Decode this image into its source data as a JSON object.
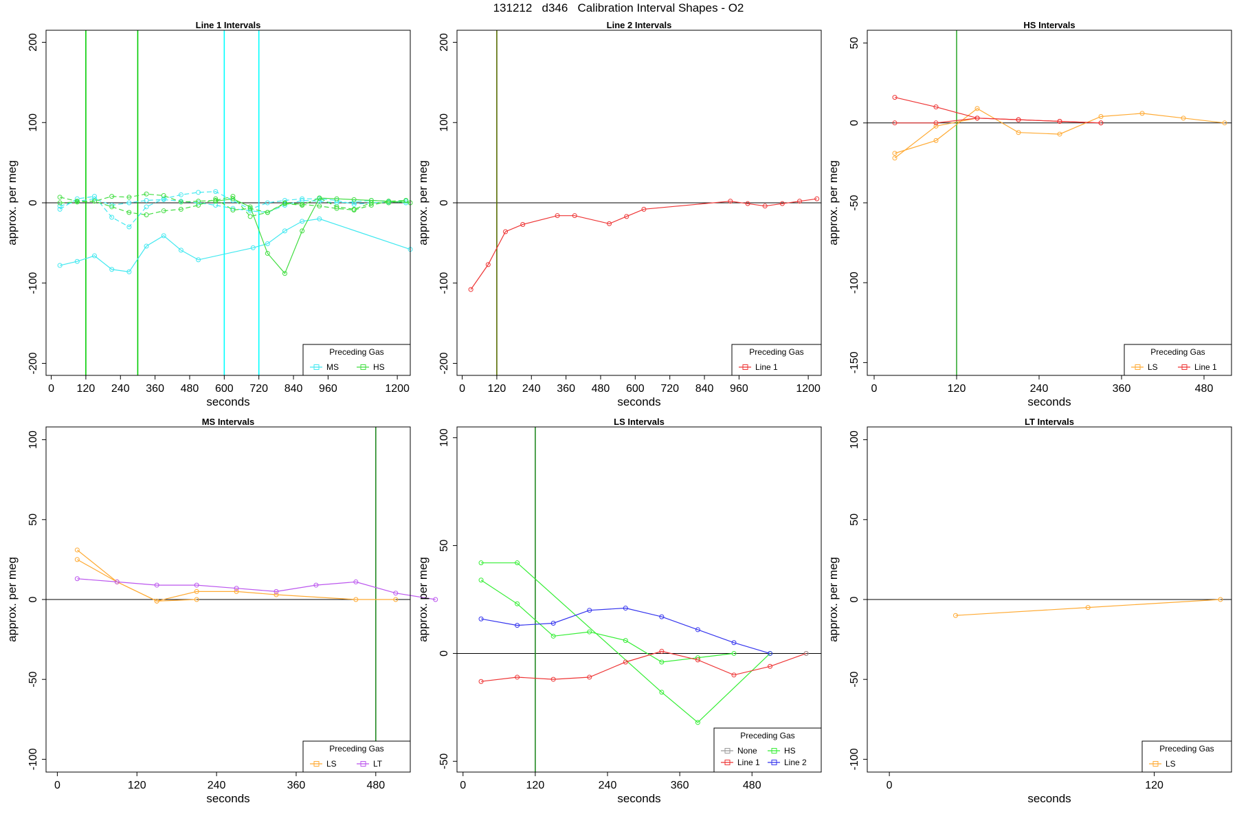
{
  "figure": {
    "title": "131212   d346   Calibration Interval Shapes - O2"
  },
  "chart_data": [
    {
      "type": "line",
      "title": "Line 1 Intervals",
      "xlabel": "seconds",
      "ylabel": "approx. per meg",
      "xlim": [
        -18,
        1245
      ],
      "ylim": [
        -215,
        215
      ],
      "xticks": [
        0,
        120,
        240,
        360,
        480,
        600,
        720,
        840,
        960,
        1200
      ],
      "yticks": [
        -200,
        -100,
        0,
        100,
        200
      ],
      "vlines": [
        {
          "x": 120,
          "color": "#00cc00"
        },
        {
          "x": 300,
          "color": "#00cc00"
        },
        {
          "x": 600,
          "color": "#00ffff"
        },
        {
          "x": 720,
          "color": "#00ffff"
        }
      ],
      "legend": {
        "title": "Preceding Gas",
        "entries": [
          {
            "name": "MS",
            "color": "#40e8f0"
          },
          {
            "name": "HS",
            "color": "#40dd40"
          }
        ]
      },
      "series": [
        {
          "name": "MS",
          "color": "#40e8f0",
          "dashed": true,
          "x": [
            30,
            90,
            150,
            210,
            270,
            330,
            390,
            450,
            510,
            570,
            630,
            690,
            750,
            810,
            870,
            930,
            990,
            1050,
            1110,
            1170,
            1230
          ],
          "y": [
            -8,
            5,
            8,
            -18,
            -30,
            -5,
            5,
            10,
            13,
            14,
            3,
            -8,
            0,
            3,
            5,
            5,
            3,
            -2,
            0,
            1,
            2
          ]
        },
        {
          "name": "MS",
          "color": "#40e8f0",
          "dashed": true,
          "x": [
            30,
            90,
            150,
            210,
            270,
            330,
            390,
            450,
            510,
            570,
            630,
            690,
            750,
            810,
            870,
            930,
            990,
            1050,
            1110,
            1170,
            1230
          ],
          "y": [
            -4,
            2,
            5,
            -3,
            0,
            3,
            4,
            2,
            0,
            -3,
            -7,
            -10,
            -12,
            -3,
            3,
            2,
            0,
            1,
            3,
            2,
            0
          ]
        },
        {
          "name": "MS",
          "color": "#40e8f0",
          "dashed": false,
          "x": [
            30,
            90,
            150,
            210,
            270,
            330,
            390,
            450,
            510,
            700,
            750,
            810,
            870,
            930,
            1245
          ],
          "y": [
            -78,
            -73,
            -66,
            -83,
            -86,
            -54,
            -41,
            -59,
            -71,
            -56,
            -51,
            -35,
            -23,
            -20,
            -58
          ]
        },
        {
          "name": "HS",
          "color": "#40dd40",
          "dashed": true,
          "x": [
            30,
            90,
            150,
            210,
            270,
            330,
            390,
            450,
            510,
            570,
            630,
            690,
            750,
            810,
            870,
            930,
            990,
            1050,
            1110,
            1170,
            1230
          ],
          "y": [
            7,
            2,
            2,
            8,
            7,
            11,
            9,
            1,
            2,
            3,
            8,
            -17,
            -12,
            0,
            -2,
            -4,
            -7,
            -9,
            -3,
            2,
            3
          ]
        },
        {
          "name": "HS",
          "color": "#40dd40",
          "dashed": true,
          "x": [
            30,
            90,
            150,
            210,
            270,
            330,
            390,
            450,
            510,
            570,
            630,
            690,
            750,
            810,
            870,
            930,
            990,
            1050,
            1110,
            1170,
            1230
          ],
          "y": [
            0,
            1,
            2,
            -5,
            -12,
            -15,
            -10,
            -8,
            -3,
            5,
            -9,
            -7,
            -12,
            -1,
            -3,
            6,
            -5,
            -8,
            0,
            0,
            3
          ]
        },
        {
          "name": "HS",
          "color": "#40dd40",
          "dashed": false,
          "x": [
            570,
            630,
            690,
            750,
            810,
            870,
            930,
            990,
            1050,
            1110,
            1170,
            1245
          ],
          "y": [
            2,
            5,
            -5,
            -63,
            -88,
            -35,
            6,
            5,
            4,
            3,
            2,
            0
          ]
        }
      ]
    },
    {
      "type": "line",
      "title": "Line 2 Intervals",
      "xlabel": "seconds",
      "ylabel": "approx. per meg",
      "xlim": [
        -18,
        1245
      ],
      "ylim": [
        -215,
        215
      ],
      "xticks": [
        0,
        120,
        240,
        360,
        480,
        600,
        720,
        840,
        960,
        1200
      ],
      "yticks": [
        -200,
        -100,
        0,
        100,
        200
      ],
      "vlines": [
        {
          "x": 120,
          "color": "#556b00"
        }
      ],
      "legend": {
        "title": "Preceding Gas",
        "entries": [
          {
            "name": "Line 1",
            "color": "#ee3333"
          }
        ]
      },
      "series": [
        {
          "name": "Line 1",
          "color": "#ee3333",
          "dashed": false,
          "x": [
            30,
            90,
            150,
            210,
            330,
            390,
            510,
            570,
            630,
            930,
            990,
            1050,
            1110,
            1170,
            1230
          ],
          "y": [
            -108,
            -77,
            -36,
            -27,
            -16,
            -16,
            -26,
            -17,
            -8,
            2,
            -1,
            -4,
            -1,
            2,
            5
          ]
        }
      ]
    },
    {
      "type": "line",
      "title": "HS Intervals",
      "xlabel": "seconds",
      "ylabel": "approx. per meg",
      "xlim": [
        -10,
        520
      ],
      "ylim": [
        -158,
        58
      ],
      "xticks": [
        0,
        120,
        240,
        360,
        480
      ],
      "yticks": [
        -150,
        -100,
        -50,
        0,
        50
      ],
      "vlines": [
        {
          "x": 120,
          "color": "#33aa33"
        }
      ],
      "legend": {
        "title": "Preceding Gas",
        "entries": [
          {
            "name": "LS",
            "color": "#ffaa33"
          },
          {
            "name": "Line 1",
            "color": "#ee3333"
          }
        ]
      },
      "series": [
        {
          "name": "LS",
          "color": "#ffaa33",
          "dashed": false,
          "x": [
            30,
            90,
            150,
            210,
            270,
            330,
            390,
            450,
            510
          ],
          "y": [
            -19,
            -11,
            9,
            -6,
            -7,
            4,
            6,
            3,
            0
          ]
        },
        {
          "name": "LS",
          "color": "#ffaa33",
          "dashed": false,
          "x": [
            30,
            90,
            150
          ],
          "y": [
            -22,
            -2,
            3
          ]
        },
        {
          "name": "Line 1",
          "color": "#ee3333",
          "dashed": false,
          "x": [
            30,
            90,
            150,
            210,
            270,
            330
          ],
          "y": [
            16,
            10,
            3,
            2,
            1,
            0
          ]
        },
        {
          "name": "Line 1",
          "color": "#ee3333",
          "dashed": false,
          "x": [
            30,
            90,
            150,
            210,
            270,
            330
          ],
          "y": [
            0,
            0,
            3,
            2,
            1,
            0
          ]
        }
      ]
    },
    {
      "type": "line",
      "title": "MS Intervals",
      "xlabel": "seconds",
      "ylabel": "approx. per meg",
      "xlim": [
        -17,
        532
      ],
      "ylim": [
        -108,
        108
      ],
      "xticks": [
        0,
        120,
        240,
        360,
        480
      ],
      "yticks": [
        -100,
        -50,
        0,
        50,
        100
      ],
      "vlines": [
        {
          "x": 480,
          "color": "#228822"
        }
      ],
      "legend": {
        "title": "Preceding Gas",
        "entries": [
          {
            "name": "LS",
            "color": "#ffaa33"
          },
          {
            "name": "LT",
            "color": "#bb55ee"
          }
        ]
      },
      "series": [
        {
          "name": "LS",
          "color": "#ffaa33",
          "dashed": false,
          "x": [
            30,
            90,
            150,
            210,
            270,
            330,
            450,
            510
          ],
          "y": [
            31,
            11,
            -1,
            5,
            5,
            3,
            0,
            0
          ]
        },
        {
          "name": "LS",
          "color": "#ffaa33",
          "dashed": false,
          "x": [
            30,
            90,
            150,
            210
          ],
          "y": [
            25,
            11,
            -1,
            0
          ]
        },
        {
          "name": "LT",
          "color": "#bb55ee",
          "dashed": false,
          "x": [
            30,
            90,
            150,
            210,
            270,
            330,
            390,
            450,
            510,
            570
          ],
          "y": [
            13,
            11,
            9,
            9,
            7,
            5,
            9,
            11,
            4,
            0
          ]
        }
      ]
    },
    {
      "type": "line",
      "title": "LS Intervals",
      "xlabel": "seconds",
      "ylabel": "approx. per meg",
      "xlim": [
        -10,
        595
      ],
      "ylim": [
        -55,
        105
      ],
      "xticks": [
        0,
        120,
        240,
        360,
        480
      ],
      "yticks": [
        -50,
        0,
        50,
        100
      ],
      "vlines": [
        {
          "x": 120,
          "color": "#228822"
        }
      ],
      "legend": {
        "title": "Preceding Gas",
        "columns": 2,
        "entries": [
          {
            "name": "None",
            "color": "#999999"
          },
          {
            "name": "HS",
            "color": "#33ee33"
          },
          {
            "name": "Line 1",
            "color": "#ee3333"
          },
          {
            "name": "Line 2",
            "color": "#3333ee"
          }
        ]
      },
      "series": [
        {
          "name": "HS",
          "color": "#33ee33",
          "dashed": false,
          "x": [
            30,
            90,
            150,
            210,
            270,
            330,
            390,
            450
          ],
          "y": [
            34,
            23,
            8,
            10,
            6,
            -4,
            -2,
            0
          ]
        },
        {
          "name": "HS",
          "color": "#33ee33",
          "dashed": false,
          "x": [
            30,
            90,
            330,
            390,
            510
          ],
          "y": [
            42,
            42,
            -18,
            -32,
            0
          ]
        },
        {
          "name": "Line 1",
          "color": "#ee3333",
          "dashed": false,
          "x": [
            30,
            90,
            150,
            210,
            270,
            330,
            390,
            450,
            510,
            570
          ],
          "y": [
            -13,
            -11,
            -12,
            -11,
            -4,
            1,
            -3,
            -10,
            -6,
            0
          ]
        },
        {
          "name": "Line 2",
          "color": "#3333ee",
          "dashed": false,
          "x": [
            30,
            90,
            150,
            210,
            270,
            330,
            390,
            450,
            510
          ],
          "y": [
            16,
            13,
            14,
            20,
            21,
            17,
            11,
            5,
            0
          ]
        },
        {
          "name": "None",
          "color": "#999999",
          "dashed": false,
          "x": [
            570
          ],
          "y": [
            0
          ]
        }
      ]
    },
    {
      "type": "line",
      "title": "LT Intervals",
      "xlabel": "seconds",
      "ylabel": "approx. per meg",
      "xlim": [
        -10,
        155
      ],
      "ylim": [
        -108,
        108
      ],
      "xticks": [
        0,
        120
      ],
      "yticks": [
        -100,
        -50,
        0,
        50,
        100
      ],
      "vlines": [],
      "legend": {
        "title": "Preceding Gas",
        "entries": [
          {
            "name": "LS",
            "color": "#ffaa33"
          }
        ]
      },
      "series": [
        {
          "name": "LS",
          "color": "#ffaa33",
          "dashed": false,
          "x": [
            30,
            90,
            150
          ],
          "y": [
            -10,
            -5,
            0
          ]
        }
      ]
    }
  ]
}
